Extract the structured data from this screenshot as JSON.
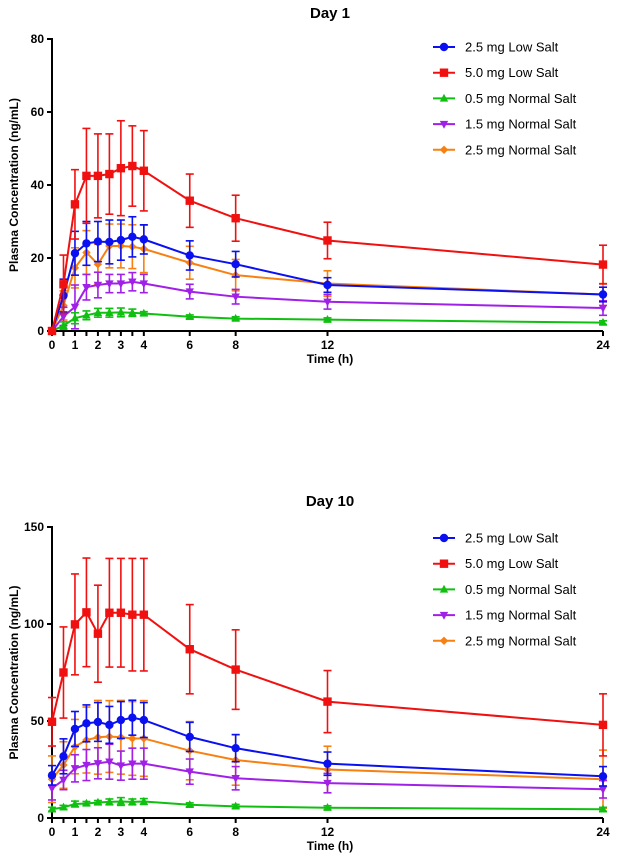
{
  "chart_data": [
    {
      "type": "line",
      "title": "Day 1",
      "xlabel": "Time (h)",
      "ylabel": "Plasma Concentration (ng/mL)",
      "xlim": [
        0,
        24
      ],
      "ylim": [
        0,
        80
      ],
      "xticks": [
        0,
        1,
        2,
        3,
        4,
        6,
        8,
        12,
        24
      ],
      "yticks": [
        0,
        20,
        40,
        60,
        80
      ],
      "legend_position": "top-right",
      "x": [
        0,
        0.5,
        1,
        1.5,
        2,
        2.5,
        3,
        3.5,
        4,
        6,
        8,
        12,
        24
      ],
      "series": [
        {
          "name": "2.5 mg Low Salt",
          "color": "#0a10f0",
          "marker": "circle",
          "values": [
            0,
            9.7,
            21.3,
            24.0,
            24.5,
            24.4,
            24.9,
            25.8,
            25.1,
            20.7,
            18.3,
            12.6,
            10.0
          ],
          "errors": [
            0,
            4.5,
            6,
            6,
            5.5,
            6,
            5.5,
            5.5,
            4,
            4,
            3.5,
            2,
            2
          ]
        },
        {
          "name": "5.0 mg Low Salt",
          "color": "#f01010",
          "marker": "square",
          "values": [
            0,
            12.8,
            34.7,
            42.5,
            42.5,
            43.0,
            44.6,
            45.2,
            43.9,
            35.7,
            30.9,
            24.8,
            18.2
          ],
          "errors": [
            0,
            8,
            9.5,
            13,
            11.5,
            11,
            13,
            11,
            11,
            7.3,
            6.3,
            5,
            5.3
          ]
        },
        {
          "name": "0.5 mg Normal Salt",
          "color": "#10c010",
          "marker": "triangle-up",
          "values": [
            0,
            1.5,
            3.5,
            4.3,
            5.0,
            5.0,
            5.1,
            5.0,
            4.8,
            3.9,
            3.4,
            3.1,
            2.3
          ],
          "errors": [
            0,
            1,
            1.5,
            1.2,
            1.2,
            1.2,
            1.2,
            1,
            0.5,
            0.5,
            0.5,
            0.5,
            0.5
          ]
        },
        {
          "name": "1.5 mg Normal Salt",
          "color": "#a020e8",
          "marker": "triangle-down",
          "values": [
            0,
            4.0,
            6.6,
            12.0,
            12.6,
            13.0,
            13.0,
            13.5,
            13.0,
            10.8,
            9.4,
            8.0,
            6.3
          ],
          "errors": [
            0,
            2.5,
            6,
            3.5,
            3.5,
            2.5,
            2.5,
            2.5,
            2.5,
            2,
            2,
            2,
            2
          ]
        },
        {
          "name": "2.5 mg Normal Salt",
          "color": "#f88010",
          "marker": "diamond",
          "values": [
            0,
            7.0,
            17.3,
            21.5,
            18.3,
            23.3,
            23.3,
            23.1,
            22.5,
            18.7,
            15.3,
            13.0,
            10.0
          ],
          "errors": [
            0,
            4,
            5.5,
            6,
            5.5,
            6,
            6,
            6,
            6.5,
            4.5,
            4.3,
            3.5,
            3
          ]
        }
      ]
    },
    {
      "type": "line",
      "title": "Day 10",
      "xlabel": "Time (h)",
      "ylabel": "Plasma Concentration (ng/mL)",
      "xlim": [
        0,
        24
      ],
      "ylim": [
        0,
        150
      ],
      "xticks": [
        0,
        1,
        2,
        3,
        4,
        6,
        8,
        12,
        24
      ],
      "yticks": [
        0,
        50,
        100,
        150
      ],
      "legend_position": "top-right",
      "x": [
        0,
        0.5,
        1,
        1.5,
        2,
        2.5,
        3,
        3.5,
        4,
        6,
        8,
        12,
        24
      ],
      "series": [
        {
          "name": "2.5 mg Low Salt",
          "color": "#0a10f0",
          "marker": "circle",
          "values": [
            22.0,
            31.8,
            45.9,
            48.8,
            49.5,
            48.0,
            50.5,
            51.7,
            50.5,
            41.8,
            36.0,
            28.0,
            21.5
          ],
          "errors": [
            5,
            9,
            9,
            9.5,
            10,
            9.5,
            9.5,
            9,
            9,
            7.5,
            7,
            6,
            5
          ]
        },
        {
          "name": "5.0 mg Low Salt",
          "color": "#f01010",
          "marker": "square",
          "values": [
            49.6,
            75.0,
            99.8,
            106.0,
            95.0,
            105.8,
            105.8,
            104.8,
            104.8,
            87.0,
            76.5,
            60.0,
            48.0
          ],
          "errors": [
            12.5,
            23.5,
            26,
            28,
            25,
            28,
            28,
            29,
            29,
            23,
            20.5,
            16,
            16
          ]
        },
        {
          "name": "0.5 mg Normal Salt",
          "color": "#10c010",
          "marker": "triangle-up",
          "values": [
            4.5,
            5.5,
            7.2,
            7.5,
            8.0,
            8.3,
            8.5,
            8.3,
            8.5,
            6.8,
            6.0,
            5.3,
            4.5
          ],
          "errors": [
            1,
            1,
            1.5,
            1,
            1,
            1.5,
            2,
            1.5,
            1.5,
            1,
            1,
            1,
            1
          ]
        },
        {
          "name": "1.5 mg Normal Salt",
          "color": "#a020e8",
          "marker": "triangle-down",
          "values": [
            15.3,
            19.6,
            25.6,
            27.3,
            28.2,
            29.0,
            27.0,
            28.0,
            28.0,
            23.9,
            20.5,
            18.0,
            14.8
          ],
          "errors": [
            6,
            5,
            7,
            8,
            8,
            9,
            7.5,
            8,
            8,
            6.5,
            6,
            5,
            4.5
          ]
        },
        {
          "name": "2.5 mg Normal Salt",
          "color": "#f88010",
          "marker": "diamond",
          "values": [
            20.0,
            27.3,
            36.8,
            40.2,
            41.6,
            42.0,
            41.6,
            41.0,
            41.0,
            34.7,
            29.9,
            25.0,
            20.0
          ],
          "errors": [
            12,
            12,
            14,
            17,
            19,
            18.5,
            19,
            19,
            19.5,
            15,
            13,
            12,
            15
          ]
        }
      ]
    }
  ]
}
